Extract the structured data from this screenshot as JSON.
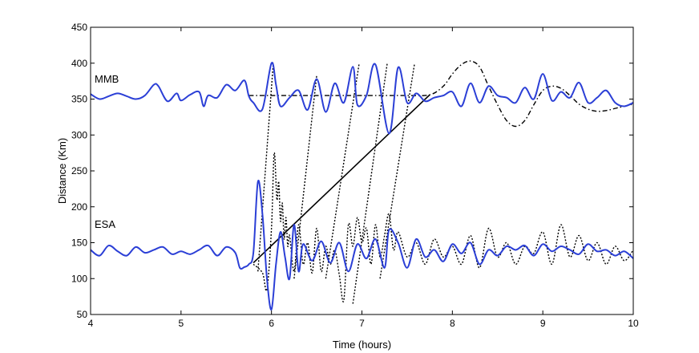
{
  "chart_data": {
    "type": "line",
    "title": "",
    "xlabel": "Time (hours)",
    "ylabel": "Distance (Km)",
    "xlim": [
      4,
      10
    ],
    "ylim": [
      50,
      450
    ],
    "xticks": [
      4,
      5,
      6,
      7,
      8,
      9,
      10
    ],
    "yticks": [
      50,
      100,
      150,
      200,
      250,
      300,
      350,
      400,
      450
    ],
    "grid": false,
    "annotations": [
      {
        "text": "MMB",
        "x": 4.05,
        "y": 370
      },
      {
        "text": "ESA",
        "x": 4.05,
        "y": 180
      }
    ],
    "series": [
      {
        "style": "blue-solid",
        "color": "#2b3fd6",
        "x": [
          4.0,
          4.1,
          4.2,
          4.3,
          4.4,
          4.5,
          4.6,
          4.7,
          4.75,
          4.85,
          4.95,
          5.0,
          5.1,
          5.2,
          5.25,
          5.3,
          5.4,
          5.5,
          5.6,
          5.7,
          5.75,
          5.8,
          5.9,
          6.0,
          6.05,
          6.1,
          6.2,
          6.3,
          6.4,
          6.5,
          6.6,
          6.7,
          6.8,
          6.9,
          6.95,
          7.05,
          7.15,
          7.3,
          7.4,
          7.5,
          7.6,
          7.7,
          7.8,
          7.9,
          8.0,
          8.1,
          8.2,
          8.3,
          8.4,
          8.5,
          8.6,
          8.7,
          8.8,
          8.9,
          9.0,
          9.1,
          9.2,
          9.3,
          9.4,
          9.5,
          9.6,
          9.7,
          9.8,
          9.9,
          10.0
        ],
        "y": [
          357,
          350,
          354,
          358,
          354,
          350,
          355,
          370,
          368,
          347,
          358,
          348,
          356,
          360,
          340,
          355,
          352,
          370,
          362,
          376,
          354,
          345,
          336,
          400,
          370,
          340,
          352,
          362,
          335,
          378,
          332,
          372,
          345,
          395,
          342,
          355,
          398,
          302,
          394,
          345,
          358,
          347,
          352,
          355,
          360,
          340,
          372,
          345,
          368,
          355,
          352,
          345,
          366,
          350,
          385,
          348,
          360,
          352,
          373,
          345,
          352,
          362,
          345,
          340,
          345
        ]
      },
      {
        "style": "blue-solid",
        "color": "#2b3fd6",
        "x": [
          4.0,
          4.1,
          4.2,
          4.3,
          4.4,
          4.5,
          4.6,
          4.7,
          4.8,
          4.9,
          5.0,
          5.1,
          5.2,
          5.3,
          5.4,
          5.5,
          5.6,
          5.65,
          5.7,
          5.75,
          5.8,
          5.85,
          5.9,
          5.95,
          6.0,
          6.05,
          6.1,
          6.15,
          6.2,
          6.25,
          6.3,
          6.35,
          6.45,
          6.55,
          6.65,
          6.75,
          6.85,
          6.95,
          7.05,
          7.15,
          7.25,
          7.3,
          7.4,
          7.5,
          7.6,
          7.7,
          7.8,
          7.9,
          8.0,
          8.1,
          8.2,
          8.3,
          8.4,
          8.5,
          8.6,
          8.7,
          8.8,
          8.9,
          9.0,
          9.1,
          9.2,
          9.3,
          9.4,
          9.5,
          9.6,
          9.7,
          9.8,
          9.9,
          10.0
        ],
        "y": [
          140,
          132,
          146,
          138,
          132,
          144,
          136,
          140,
          144,
          134,
          138,
          134,
          140,
          146,
          132,
          144,
          136,
          115,
          116,
          120,
          136,
          235,
          190,
          100,
          57,
          120,
          165,
          130,
          100,
          175,
          110,
          148,
          125,
          152,
          122,
          150,
          110,
          148,
          128,
          155,
          115,
          168,
          150,
          115,
          155,
          130,
          140,
          124,
          148,
          135,
          150,
          120,
          140,
          132,
          145,
          140,
          146,
          132,
          148,
          138,
          145,
          140,
          134,
          148,
          138,
          140,
          132,
          138,
          128
        ]
      },
      {
        "style": "black-dotted",
        "color": "#000000",
        "x": [
          5.8,
          5.9,
          5.95,
          6.0,
          6.03,
          6.06,
          6.08,
          6.1,
          6.12,
          6.14,
          6.16,
          6.18,
          6.2,
          6.25,
          6.3,
          6.35,
          6.4,
          6.45,
          6.5,
          6.55,
          6.6,
          6.65,
          6.7,
          6.75,
          6.8,
          6.85,
          6.9,
          6.95,
          7.0,
          7.05,
          7.1,
          7.15,
          7.2,
          7.25,
          7.3,
          7.35,
          7.4,
          7.5,
          7.6,
          7.7,
          7.8,
          7.9,
          8.0,
          8.1,
          8.2,
          8.3,
          8.4,
          8.5,
          8.6,
          8.7,
          8.8,
          8.9,
          9.0,
          9.1,
          9.2,
          9.3,
          9.4,
          9.5,
          9.6,
          9.7,
          9.8,
          9.9,
          10.0
        ],
        "y": [
          120,
          108,
          85,
          170,
          275,
          210,
          235,
          180,
          205,
          155,
          185,
          145,
          160,
          110,
          175,
          120,
          150,
          108,
          170,
          110,
          145,
          120,
          140,
          105,
          70,
          175,
          145,
          185,
          150,
          170,
          120,
          175,
          130,
          160,
          190,
          140,
          165,
          130,
          150,
          120,
          155,
          130,
          145,
          120,
          160,
          115,
          170,
          130,
          150,
          120,
          145,
          135,
          165,
          120,
          175,
          130,
          160,
          125,
          150,
          120,
          145,
          125,
          140
        ]
      },
      {
        "style": "black-dotted",
        "color": "#000000",
        "x": [
          5.85,
          6.02
        ],
        "y": [
          110,
          400
        ]
      },
      {
        "style": "black-dotted",
        "color": "#000000",
        "x": [
          6.25,
          6.5
        ],
        "y": [
          100,
          383
        ]
      },
      {
        "style": "black-dotted",
        "color": "#000000",
        "x": [
          6.6,
          6.97
        ],
        "y": [
          100,
          400
        ]
      },
      {
        "style": "black-dotted",
        "color": "#000000",
        "x": [
          6.9,
          7.28
        ],
        "y": [
          65,
          400
        ]
      },
      {
        "style": "black-dotted",
        "color": "#000000",
        "x": [
          7.2,
          7.58
        ],
        "y": [
          100,
          398
        ]
      },
      {
        "style": "black-dashdot",
        "color": "#000000",
        "x": [
          5.75,
          6.5,
          7.0,
          7.5,
          7.75,
          7.9,
          8.0,
          8.1,
          8.2,
          8.3,
          8.4,
          8.5,
          8.6,
          8.7,
          8.8,
          8.9,
          9.0,
          9.1,
          9.2,
          9.3,
          9.4,
          9.5,
          9.6,
          9.7,
          9.8,
          9.9,
          10.0
        ],
        "y": [
          355,
          355,
          355,
          355,
          356,
          368,
          385,
          398,
          403,
          395,
          368,
          342,
          320,
          312,
          320,
          342,
          362,
          368,
          365,
          355,
          343,
          336,
          333,
          334,
          337,
          340,
          343
        ]
      },
      {
        "style": "black-solid",
        "color": "#000000",
        "x": [
          5.8,
          7.75
        ],
        "y": [
          122,
          356
        ]
      }
    ]
  }
}
